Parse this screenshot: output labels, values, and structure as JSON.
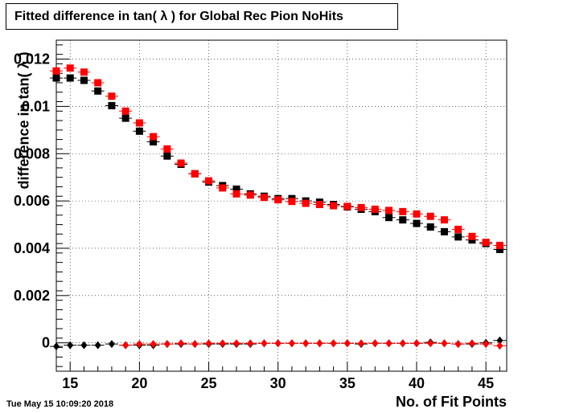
{
  "chart_data": {
    "type": "scatter",
    "title": "Fitted difference in tan( λ ) for Global Rec Pion NoHits",
    "xlabel": "No. of Fit Points",
    "ylabel": "difference in tan( λ )",
    "xlim": [
      14,
      46.5
    ],
    "ylim": [
      -0.0012,
      0.0128
    ],
    "xticks": [
      "15",
      "20",
      "25",
      "30",
      "35",
      "40",
      "45"
    ],
    "yticks": [
      "0",
      "0.002",
      "0.004",
      "0.006",
      "0.008",
      "0.01",
      "0.012"
    ],
    "grid": true,
    "x": [
      14,
      15,
      16,
      17,
      18,
      19,
      20,
      21,
      22,
      23,
      24,
      25,
      26,
      27,
      28,
      29,
      30,
      31,
      32,
      33,
      34,
      35,
      36,
      37,
      38,
      39,
      40,
      41,
      42,
      43,
      44,
      45,
      46
    ],
    "series": [
      {
        "marker": "square",
        "color": "#000000",
        "values": [
          0.0112,
          0.0112,
          0.0111,
          0.01065,
          0.01003,
          0.0095,
          0.00895,
          0.0085,
          0.0079,
          0.00755,
          0.00715,
          0.0068,
          0.00665,
          0.0065,
          0.0063,
          0.0062,
          0.0061,
          0.0061,
          0.006,
          0.00595,
          0.00585,
          0.00575,
          0.00565,
          0.00555,
          0.0053,
          0.0052,
          0.00505,
          0.0049,
          0.0047,
          0.00448,
          0.00435,
          0.0042,
          0.00395
        ]
      },
      {
        "marker": "square",
        "color": "#ff0000",
        "values": [
          0.0115,
          0.01162,
          0.01145,
          0.011,
          0.01043,
          0.0098,
          0.0093,
          0.00872,
          0.0082,
          0.0076,
          0.00715,
          0.00685,
          0.00655,
          0.0063,
          0.00625,
          0.00615,
          0.00605,
          0.00598,
          0.0059,
          0.00585,
          0.0058,
          0.00577,
          0.00572,
          0.00565,
          0.0056,
          0.00555,
          0.00545,
          0.00535,
          0.0052,
          0.0048,
          0.0045,
          0.00425,
          0.00412
        ]
      },
      {
        "marker": "diamond",
        "color": "#000000",
        "values": [
          -0.00015,
          -0.0001,
          -0.0001,
          -0.0001,
          -5e-05,
          -0.0001,
          -0.0001,
          -0.0001,
          -5e-05,
          -5e-05,
          -5e-05,
          -5e-05,
          -5e-05,
          -5e-05,
          -5e-05,
          -2e-05,
          -2e-05,
          -2e-05,
          -2e-05,
          -2e-05,
          -2e-05,
          -2e-05,
          -5e-05,
          -2e-05,
          -2e-05,
          -2e-05,
          -2e-05,
          2e-05,
          -2e-05,
          -5e-05,
          -5e-05,
          0,
          0.0001
        ]
      },
      {
        "marker": "diamond",
        "color": "#ff0000",
        "values": [
          null,
          null,
          null,
          null,
          null,
          -0.0001,
          -5e-05,
          -5e-05,
          -5e-05,
          -2e-05,
          -5e-05,
          -2e-05,
          -2e-05,
          -2e-05,
          -2e-05,
          -2e-05,
          -2e-05,
          -2e-05,
          -2e-05,
          -2e-05,
          -2e-05,
          -2e-05,
          -2e-05,
          -2e-05,
          -2e-05,
          -2e-05,
          -2e-05,
          -2e-05,
          -2e-05,
          -5e-05,
          -2e-05,
          -5e-05,
          -0.00012
        ]
      }
    ]
  },
  "footer": {
    "timestamp": "Tue May 15 10:09:20 2018"
  }
}
